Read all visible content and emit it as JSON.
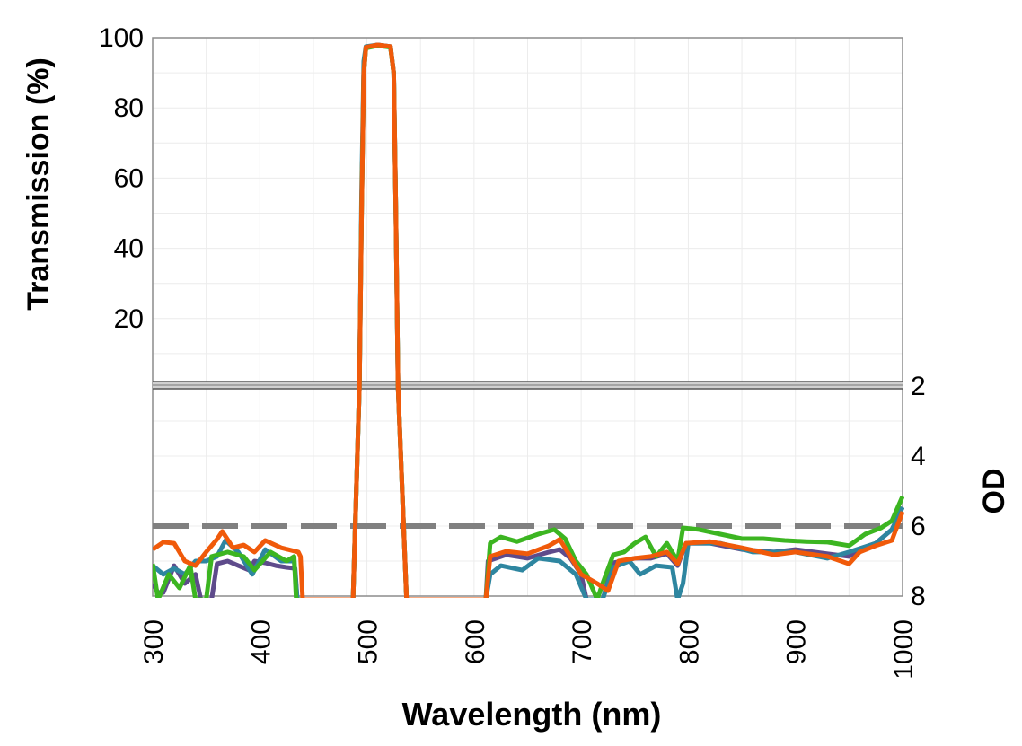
{
  "chart_data": {
    "type": "line",
    "xlabel": "Wavelength (nm)",
    "ylabel_top": "Transmission (%)",
    "ylabel_bottom": "OD",
    "xlim": [
      300,
      1000
    ],
    "x_ticks": [
      "300",
      "400",
      "500",
      "600",
      "700",
      "800",
      "900",
      "1000"
    ],
    "top_panel": {
      "ylim": [
        0,
        100
      ],
      "y_ticks": [
        "20",
        "40",
        "60",
        "80",
        "100"
      ],
      "scale": "linear"
    },
    "bottom_panel": {
      "ylim": [
        2,
        8
      ],
      "y_ticks": [
        "2",
        "4",
        "6",
        "8"
      ],
      "inverted": true
    },
    "grid": true,
    "reference_line": {
      "od": 6,
      "style": "dashed",
      "color": "#808080"
    },
    "series": [
      {
        "color": "#5e4b8b",
        "points": [
          [
            300,
            7.64
          ],
          [
            305,
            7.9
          ],
          [
            310,
            7.9
          ],
          [
            320,
            7.13
          ],
          [
            330,
            7.64
          ],
          [
            340,
            7.38
          ],
          [
            345,
            8.5
          ],
          [
            355,
            8.5
          ],
          [
            360,
            7.08
          ],
          [
            370,
            7.0
          ],
          [
            380,
            7.13
          ],
          [
            390,
            7.26
          ],
          [
            395,
            7.0
          ],
          [
            405,
            7.05
          ],
          [
            415,
            7.13
          ],
          [
            425,
            7.18
          ],
          [
            433,
            7.21
          ],
          [
            435,
            8.5
          ],
          [
            487,
            8.5
          ],
          [
            493,
            2
          ],
          [
            495,
            0.3
          ],
          [
            497,
            0.046
          ],
          [
            499,
            0.012
          ],
          [
            510,
            0.009
          ],
          [
            522,
            0.011
          ],
          [
            525,
            0.046
          ],
          [
            527,
            0.3
          ],
          [
            529,
            2
          ],
          [
            537,
            8.5
          ],
          [
            611,
            8.5
          ],
          [
            613,
            7.0
          ],
          [
            630,
            6.82
          ],
          [
            650,
            6.92
          ],
          [
            670,
            6.74
          ],
          [
            680,
            6.67
          ],
          [
            690,
            6.92
          ],
          [
            700,
            7.38
          ],
          [
            705,
            8.5
          ],
          [
            720,
            8.5
          ],
          [
            730,
            7.05
          ],
          [
            750,
            6.92
          ],
          [
            765,
            6.92
          ],
          [
            780,
            6.79
          ],
          [
            790,
            7.13
          ],
          [
            798,
            6.49
          ],
          [
            820,
            6.49
          ],
          [
            850,
            6.67
          ],
          [
            880,
            6.74
          ],
          [
            900,
            6.67
          ],
          [
            930,
            6.79
          ],
          [
            950,
            6.87
          ],
          [
            960,
            6.67
          ],
          [
            975,
            6.49
          ],
          [
            990,
            6.1
          ],
          [
            1000,
            5.46
          ]
        ]
      },
      {
        "color": "#2e86a0",
        "points": [
          [
            300,
            7.13
          ],
          [
            310,
            7.38
          ],
          [
            320,
            7.21
          ],
          [
            330,
            7.38
          ],
          [
            340,
            7.0
          ],
          [
            350,
            7.0
          ],
          [
            360,
            6.87
          ],
          [
            368,
            6.41
          ],
          [
            380,
            6.74
          ],
          [
            393,
            7.38
          ],
          [
            405,
            6.67
          ],
          [
            420,
            7.0
          ],
          [
            432,
            7.0
          ],
          [
            435,
            8.5
          ],
          [
            487,
            8.5
          ],
          [
            493,
            2
          ],
          [
            495,
            0.25
          ],
          [
            497,
            0.03
          ],
          [
            499,
            0.011
          ],
          [
            510,
            0.009
          ],
          [
            522,
            0.011
          ],
          [
            525,
            0.046
          ],
          [
            527,
            0.3
          ],
          [
            529,
            2
          ],
          [
            537,
            8.5
          ],
          [
            611,
            8.5
          ],
          [
            615,
            7.38
          ],
          [
            625,
            7.13
          ],
          [
            645,
            7.26
          ],
          [
            660,
            6.92
          ],
          [
            680,
            7.0
          ],
          [
            695,
            7.38
          ],
          [
            705,
            8.5
          ],
          [
            720,
            8.5
          ],
          [
            730,
            7.18
          ],
          [
            745,
            7.0
          ],
          [
            755,
            7.38
          ],
          [
            770,
            7.13
          ],
          [
            785,
            7.18
          ],
          [
            790,
            8.5
          ],
          [
            795,
            7.64
          ],
          [
            800,
            6.49
          ],
          [
            830,
            6.49
          ],
          [
            860,
            6.74
          ],
          [
            900,
            6.74
          ],
          [
            930,
            6.92
          ],
          [
            950,
            6.74
          ],
          [
            975,
            6.49
          ],
          [
            990,
            6.1
          ],
          [
            1000,
            5.46
          ]
        ]
      },
      {
        "color": "#3cb521",
        "points": [
          [
            300,
            7.08
          ],
          [
            305,
            8.5
          ],
          [
            315,
            7.38
          ],
          [
            325,
            7.77
          ],
          [
            335,
            7.13
          ],
          [
            340,
            8.5
          ],
          [
            350,
            8.5
          ],
          [
            355,
            6.87
          ],
          [
            370,
            6.74
          ],
          [
            385,
            6.87
          ],
          [
            395,
            7.26
          ],
          [
            410,
            6.74
          ],
          [
            425,
            7.0
          ],
          [
            432,
            6.87
          ],
          [
            434,
            8.5
          ],
          [
            487,
            8.5
          ],
          [
            493,
            2
          ],
          [
            495,
            0.3
          ],
          [
            497,
            0.046
          ],
          [
            499,
            0.013
          ],
          [
            510,
            0.01
          ],
          [
            522,
            0.012
          ],
          [
            525,
            0.046
          ],
          [
            527,
            0.3
          ],
          [
            529,
            2
          ],
          [
            537,
            8.5
          ],
          [
            611,
            8.5
          ],
          [
            615,
            6.49
          ],
          [
            625,
            6.31
          ],
          [
            640,
            6.44
          ],
          [
            660,
            6.23
          ],
          [
            675,
            6.1
          ],
          [
            685,
            6.36
          ],
          [
            695,
            7.0
          ],
          [
            705,
            7.38
          ],
          [
            715,
            8.5
          ],
          [
            720,
            7.64
          ],
          [
            730,
            6.82
          ],
          [
            740,
            6.74
          ],
          [
            750,
            6.49
          ],
          [
            760,
            6.31
          ],
          [
            770,
            6.87
          ],
          [
            780,
            6.49
          ],
          [
            790,
            7.0
          ],
          [
            795,
            6.05
          ],
          [
            810,
            6.1
          ],
          [
            830,
            6.23
          ],
          [
            850,
            6.36
          ],
          [
            870,
            6.36
          ],
          [
            890,
            6.41
          ],
          [
            910,
            6.44
          ],
          [
            930,
            6.46
          ],
          [
            950,
            6.56
          ],
          [
            965,
            6.23
          ],
          [
            980,
            6.05
          ],
          [
            990,
            5.85
          ],
          [
            1000,
            5.15
          ]
        ]
      },
      {
        "color": "#f05a0a",
        "points": [
          [
            300,
            6.67
          ],
          [
            310,
            6.46
          ],
          [
            320,
            6.49
          ],
          [
            330,
            7.0
          ],
          [
            340,
            7.13
          ],
          [
            350,
            6.74
          ],
          [
            360,
            6.38
          ],
          [
            365,
            6.15
          ],
          [
            375,
            6.62
          ],
          [
            385,
            6.54
          ],
          [
            395,
            6.74
          ],
          [
            405,
            6.41
          ],
          [
            420,
            6.62
          ],
          [
            436,
            6.74
          ],
          [
            438,
            6.87
          ],
          [
            440,
            8.5
          ],
          [
            487,
            8.5
          ],
          [
            493,
            2
          ],
          [
            495,
            0.3
          ],
          [
            497,
            0.046
          ],
          [
            499,
            0.012
          ],
          [
            510,
            0.009
          ],
          [
            522,
            0.011
          ],
          [
            525,
            0.046
          ],
          [
            527,
            0.3
          ],
          [
            529,
            2
          ],
          [
            537,
            8.5
          ],
          [
            611,
            8.5
          ],
          [
            615,
            6.87
          ],
          [
            630,
            6.72
          ],
          [
            650,
            6.79
          ],
          [
            670,
            6.56
          ],
          [
            680,
            6.38
          ],
          [
            690,
            6.87
          ],
          [
            700,
            7.38
          ],
          [
            715,
            7.64
          ],
          [
            725,
            7.85
          ],
          [
            735,
            7.0
          ],
          [
            750,
            6.92
          ],
          [
            765,
            6.87
          ],
          [
            780,
            6.74
          ],
          [
            790,
            7.08
          ],
          [
            798,
            6.49
          ],
          [
            820,
            6.44
          ],
          [
            850,
            6.62
          ],
          [
            880,
            6.82
          ],
          [
            900,
            6.74
          ],
          [
            930,
            6.87
          ],
          [
            950,
            7.08
          ],
          [
            960,
            6.74
          ],
          [
            975,
            6.56
          ],
          [
            990,
            6.41
          ],
          [
            1000,
            5.59
          ]
        ]
      }
    ]
  }
}
